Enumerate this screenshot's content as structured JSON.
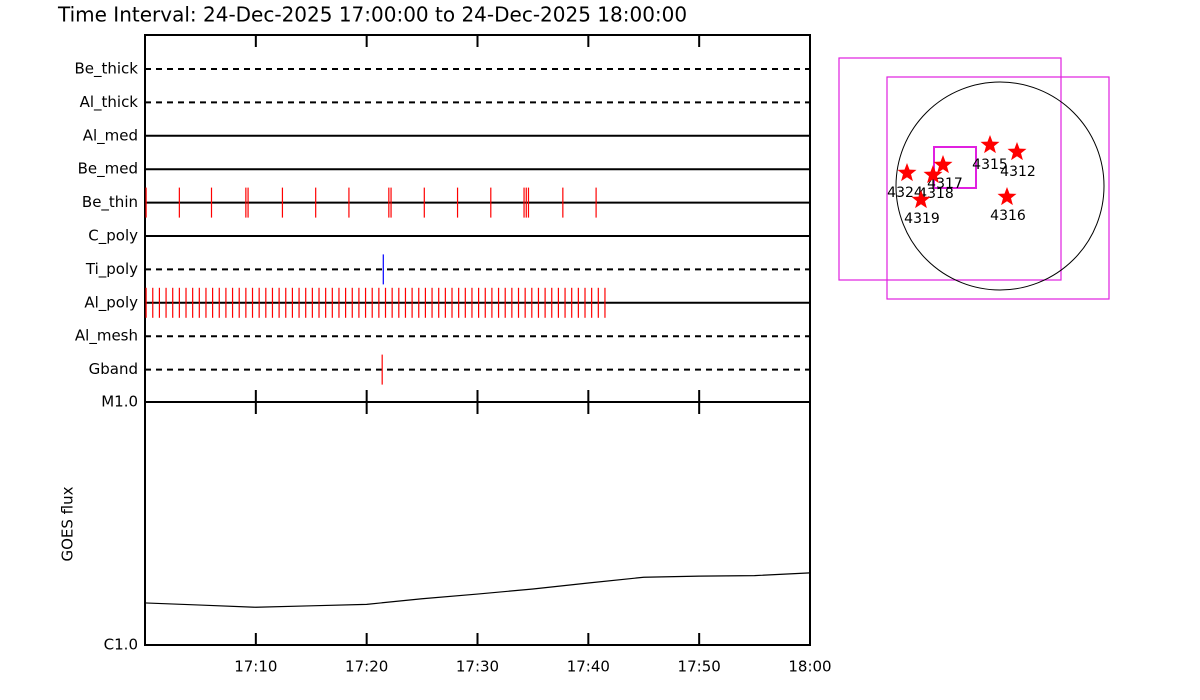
{
  "title": "Time Interval: 24-Dec-2025 17:00:00 to 24-Dec-2025 18:00:00",
  "chart_data": [
    {
      "type": "timeline",
      "xlim": [
        0,
        60
      ],
      "channels": [
        {
          "name": "Be_thick",
          "line": "dashed",
          "color": "#ff0000",
          "events": []
        },
        {
          "name": "Al_thick",
          "line": "dashed",
          "color": "#ff0000",
          "events": []
        },
        {
          "name": "Al_med",
          "line": "solid",
          "color": "#ff0000",
          "events": []
        },
        {
          "name": "Be_med",
          "line": "solid",
          "color": "#ff0000",
          "events": []
        },
        {
          "name": "Be_thin",
          "line": "solid",
          "color": "#ff0000",
          "events": [
            0.1,
            3.1,
            6.0,
            9.1,
            9.3,
            12.4,
            15.4,
            18.4,
            22.0,
            22.2,
            25.2,
            28.2,
            31.2,
            34.2,
            34.4,
            34.6,
            37.7,
            40.7
          ]
        },
        {
          "name": "C_poly",
          "line": "solid",
          "color": "#ff0000",
          "events": []
        },
        {
          "name": "Ti_poly",
          "line": "dashed",
          "color": "#0000ff",
          "events": [
            21.5
          ]
        },
        {
          "name": "Al_poly",
          "line": "solid",
          "color": "#ff0000",
          "events": [
            0.1,
            0.7,
            1.3,
            1.9,
            2.5,
            3.1,
            3.7,
            4.3,
            4.9,
            5.5,
            6.1,
            6.7,
            7.3,
            7.9,
            8.5,
            9.1,
            9.7,
            10.3,
            10.9,
            11.5,
            12.1,
            12.7,
            13.3,
            13.9,
            14.5,
            15.1,
            15.7,
            16.3,
            16.9,
            17.5,
            18.1,
            18.7,
            19.3,
            19.9,
            20.5,
            21.1,
            21.7,
            22.3,
            22.9,
            23.5,
            24.1,
            24.7,
            25.3,
            25.9,
            26.5,
            27.1,
            27.7,
            28.3,
            28.9,
            29.5,
            30.1,
            30.7,
            31.3,
            31.9,
            32.5,
            33.1,
            33.7,
            34.3,
            34.9,
            35.5,
            36.1,
            36.7,
            37.3,
            37.9,
            38.5,
            39.1,
            39.7,
            40.3,
            40.9,
            41.5
          ]
        },
        {
          "name": "Al_mesh",
          "line": "dashed",
          "color": "#ff0000",
          "events": []
        },
        {
          "name": "Gband",
          "line": "dashed",
          "color": "#ff0000",
          "events": [
            21.4
          ]
        }
      ]
    },
    {
      "type": "line",
      "ylabel": "GOES flux",
      "log": true,
      "color": "#000000",
      "xlim": [
        0,
        60
      ],
      "xticks": [
        {
          "value": 10,
          "label": "17:10"
        },
        {
          "value": 20,
          "label": "17:20"
        },
        {
          "value": 30,
          "label": "17:30"
        },
        {
          "value": 40,
          "label": "17:40"
        },
        {
          "value": 50,
          "label": "17:50"
        },
        {
          "value": 60,
          "label": "18:00"
        }
      ],
      "ylim": [
        1e-06,
        1e-05
      ],
      "yticks": [
        {
          "value": 1e-06,
          "label": "C1.0"
        },
        {
          "value": 1e-05,
          "label": "M1.0"
        }
      ],
      "x": [
        0,
        5,
        10,
        15,
        20,
        25,
        30,
        35,
        40,
        45,
        50,
        55,
        60
      ],
      "values": [
        1.49e-06,
        1.46e-06,
        1.43e-06,
        1.45e-06,
        1.47e-06,
        1.55e-06,
        1.62e-06,
        1.7e-06,
        1.8e-06,
        1.9e-06,
        1.92e-06,
        1.93e-06,
        1.98e-06
      ]
    }
  ],
  "map": {
    "regions": [
      {
        "label": "4315"
      },
      {
        "label": "4312"
      },
      {
        "label": "4317"
      },
      {
        "label": "4318"
      },
      {
        "label": "4324"
      },
      {
        "label": "4319"
      },
      {
        "label": "4316"
      }
    ]
  }
}
